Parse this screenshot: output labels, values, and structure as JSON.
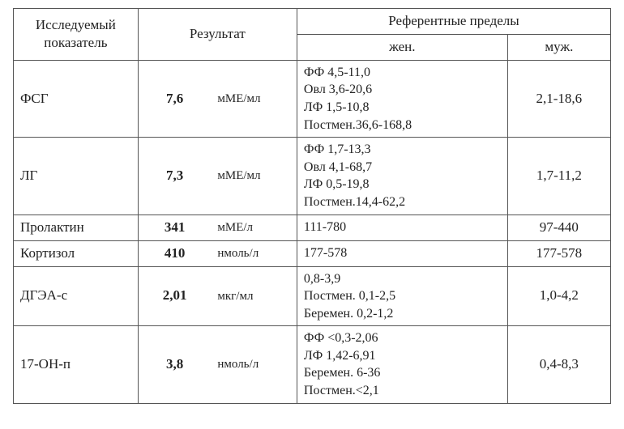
{
  "headers": {
    "parameter": "Исследуемый показатель",
    "result": "Результат",
    "reference": "Референтные пределы",
    "female": "жен.",
    "male": "муж."
  },
  "rows": {
    "fsh": {
      "param": "ФСГ",
      "value": "7,6",
      "unit": "мМЕ/мл",
      "female_lines": {
        "l1": "ФФ 4,5-11,0",
        "l2": "Овл 3,6-20,6",
        "l3": "ЛФ 1,5-10,8",
        "l4": "Постмен.36,6-168,8"
      },
      "male": "2,1-18,6"
    },
    "lh": {
      "param": "ЛГ",
      "value": "7,3",
      "unit": "мМЕ/мл",
      "female_lines": {
        "l1": "ФФ 1,7-13,3",
        "l2": "Овл 4,1-68,7",
        "l3": "ЛФ 0,5-19,8",
        "l4": "Постмен.14,4-62,2"
      },
      "male": "1,7-11,2"
    },
    "prolactin": {
      "param": "Пролактин",
      "value": "341",
      "unit": "мМЕ/л",
      "female": "111-780",
      "male": "97-440"
    },
    "cortisol": {
      "param": "Кортизол",
      "value": "410",
      "unit": "нмоль/л",
      "female": "177-578",
      "male": "177-578"
    },
    "dhea": {
      "param": "ДГЭА-с",
      "value": "2,01",
      "unit": "мкг/мл",
      "female_lines": {
        "l1": "0,8-3,9",
        "l2": "Постмен. 0,1-2,5",
        "l3": "Беремен. 0,2-1,2"
      },
      "male": "1,0-4,2"
    },
    "ohp17": {
      "param": "17-ОН-п",
      "value": "3,8",
      "unit": "нмоль/л",
      "female_lines": {
        "l1": "ФФ <0,3-2,06",
        "l2": "ЛФ 1,42-6,91",
        "l3": "Беремен. 6-36",
        "l4": "Постмен.<2,1"
      },
      "male": "0,4-8,3"
    }
  }
}
